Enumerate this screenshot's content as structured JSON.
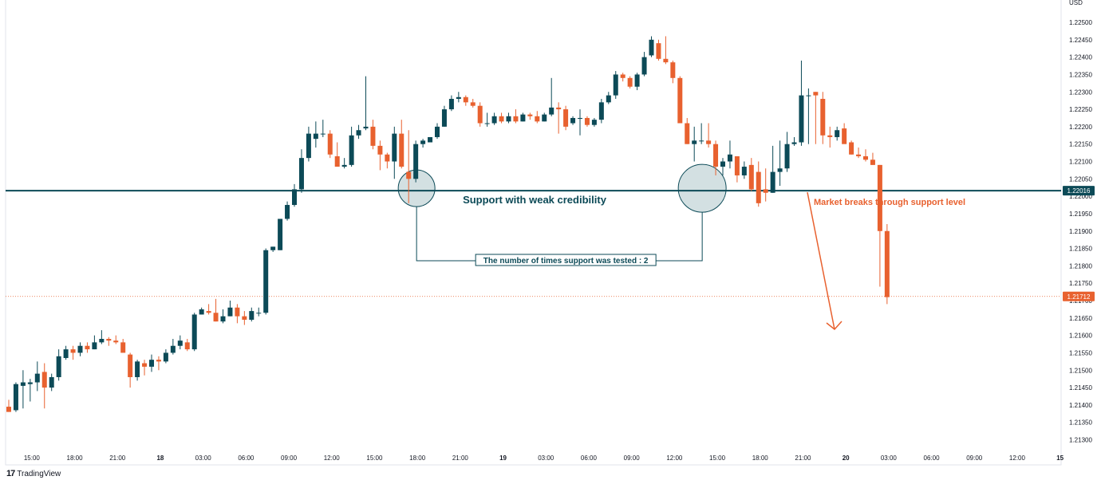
{
  "chart_data": {
    "type": "candlestick",
    "currency": "USD",
    "y_ticks": [
      1.225,
      1.2245,
      1.224,
      1.2235,
      1.223,
      1.2225,
      1.222,
      1.2215,
      1.221,
      1.2205,
      1.22,
      1.2195,
      1.219,
      1.2185,
      1.218,
      1.2175,
      1.217,
      1.2165,
      1.216,
      1.2155,
      1.215,
      1.2145,
      1.214,
      1.2135,
      1.213
    ],
    "y_tick_labels": [
      "1.22500",
      "1.22450",
      "1.22400",
      "1.22350",
      "1.22300",
      "1.22250",
      "1.22200",
      "1.22150",
      "1.22100",
      "1.22050",
      "1.22000",
      "1.21950",
      "1.21900",
      "1.21850",
      "1.21800",
      "1.21750",
      "1.21700",
      "1.21650",
      "1.21600",
      "1.21550",
      "1.21500",
      "1.21450",
      "1.21400",
      "1.21350",
      "1.21300"
    ],
    "ylim": [
      1.21285,
      1.22535
    ],
    "x_ticks": [
      {
        "bar": 3,
        "label": "15:00"
      },
      {
        "bar": 9,
        "label": "18:00"
      },
      {
        "bar": 15,
        "label": "21:00"
      },
      {
        "bar": 21,
        "label": "18"
      },
      {
        "bar": 27,
        "label": "03:00"
      },
      {
        "bar": 33,
        "label": "06:00"
      },
      {
        "bar": 39,
        "label": "09:00"
      },
      {
        "bar": 45,
        "label": "12:00"
      },
      {
        "bar": 51,
        "label": "15:00"
      },
      {
        "bar": 57,
        "label": "18:00"
      },
      {
        "bar": 63,
        "label": "21:00"
      },
      {
        "bar": 69,
        "label": "19"
      },
      {
        "bar": 75,
        "label": "03:00"
      },
      {
        "bar": 81,
        "label": "06:00"
      },
      {
        "bar": 87,
        "label": "09:00"
      },
      {
        "bar": 93,
        "label": "12:00"
      },
      {
        "bar": 99,
        "label": "15:00"
      },
      {
        "bar": 105,
        "label": "18:00"
      },
      {
        "bar": 111,
        "label": "21:00"
      },
      {
        "bar": 117,
        "label": "20"
      },
      {
        "bar": 123,
        "label": "03:00"
      },
      {
        "bar": 129,
        "label": "06:00"
      },
      {
        "bar": 135,
        "label": "09:00"
      },
      {
        "bar": 141,
        "label": "12:00"
      },
      {
        "bar": 147,
        "label": "15"
      }
    ],
    "total_bars": 148,
    "candles": [
      [
        1.21395,
        1.21415,
        1.2138,
        1.2138
      ],
      [
        1.21385,
        1.21465,
        1.2138,
        1.2146
      ],
      [
        1.21455,
        1.215,
        1.2139,
        1.21465
      ],
      [
        1.2146,
        1.21475,
        1.2141,
        1.21465
      ],
      [
        1.21465,
        1.21525,
        1.2144,
        1.2149
      ],
      [
        1.21495,
        1.2152,
        1.2139,
        1.2145
      ],
      [
        1.2145,
        1.2149,
        1.2144,
        1.2148
      ],
      [
        1.2148,
        1.2156,
        1.2147,
        1.2154
      ],
      [
        1.21535,
        1.2157,
        1.2153,
        1.2156
      ],
      [
        1.2156,
        1.2157,
        1.2153,
        1.2155
      ],
      [
        1.2155,
        1.2158,
        1.2154,
        1.2157
      ],
      [
        1.2157,
        1.2158,
        1.2155,
        1.2156
      ],
      [
        1.2156,
        1.216,
        1.2156,
        1.2158
      ],
      [
        1.2158,
        1.21615,
        1.21575,
        1.2159
      ],
      [
        1.2159,
        1.21595,
        1.2157,
        1.21585
      ],
      [
        1.21585,
        1.216,
        1.21575,
        1.2158
      ],
      [
        1.2158,
        1.2159,
        1.21555,
        1.2155
      ],
      [
        1.21545,
        1.2155,
        1.2145,
        1.2148
      ],
      [
        1.2148,
        1.2153,
        1.2147,
        1.21525
      ],
      [
        1.2152,
        1.2153,
        1.21485,
        1.2151
      ],
      [
        1.2151,
        1.21545,
        1.21495,
        1.2153
      ],
      [
        1.2153,
        1.2154,
        1.215,
        1.21525
      ],
      [
        1.21525,
        1.2156,
        1.2152,
        1.2155
      ],
      [
        1.2155,
        1.2159,
        1.21545,
        1.2157
      ],
      [
        1.2157,
        1.216,
        1.2156,
        1.21585
      ],
      [
        1.2158,
        1.2159,
        1.21555,
        1.2156
      ],
      [
        1.2156,
        1.21665,
        1.21555,
        1.2166
      ],
      [
        1.2166,
        1.2168,
        1.2166,
        1.21675
      ],
      [
        1.2167,
        1.2169,
        1.2166,
        1.21665
      ],
      [
        1.21665,
        1.21705,
        1.2164,
        1.2164
      ],
      [
        1.2164,
        1.21675,
        1.21635,
        1.21655
      ],
      [
        1.21655,
        1.217,
        1.21655,
        1.2168
      ],
      [
        1.2168,
        1.2169,
        1.21635,
        1.21655
      ],
      [
        1.21655,
        1.2167,
        1.2163,
        1.21645
      ],
      [
        1.21645,
        1.2168,
        1.2164,
        1.2167
      ],
      [
        1.21665,
        1.2168,
        1.21655,
        1.21665
      ],
      [
        1.21665,
        1.2185,
        1.2166,
        1.21845
      ],
      [
        1.21845,
        1.21855,
        1.2184,
        1.21855
      ],
      [
        1.21845,
        1.21935,
        1.21845,
        1.21935
      ],
      [
        1.21935,
        1.21985,
        1.2193,
        1.21975
      ],
      [
        1.21975,
        1.22035,
        1.2197,
        1.2202
      ],
      [
        1.2202,
        1.22135,
        1.2201,
        1.2211
      ],
      [
        1.2211,
        1.222,
        1.221,
        1.2218
      ],
      [
        1.22165,
        1.22215,
        1.2214,
        1.2218
      ],
      [
        1.2218,
        1.2222,
        1.2217,
        1.2218
      ],
      [
        1.2218,
        1.2219,
        1.2211,
        1.2212
      ],
      [
        1.22115,
        1.22155,
        1.22085,
        1.22085
      ],
      [
        1.22085,
        1.2211,
        1.2208,
        1.2209
      ],
      [
        1.2209,
        1.222,
        1.22085,
        1.22175
      ],
      [
        1.22175,
        1.22205,
        1.22165,
        1.2219
      ],
      [
        1.22195,
        1.22345,
        1.2219,
        1.222
      ],
      [
        1.222,
        1.2222,
        1.22135,
        1.22145
      ],
      [
        1.22145,
        1.2216,
        1.22075,
        1.2212
      ],
      [
        1.2212,
        1.22125,
        1.2208,
        1.221
      ],
      [
        1.221,
        1.222,
        1.2205,
        1.2218
      ],
      [
        1.2218,
        1.2222,
        1.2208,
        1.22085
      ],
      [
        1.2207,
        1.2219,
        1.2198,
        1.2205
      ],
      [
        1.2205,
        1.2216,
        1.2204,
        1.2215
      ],
      [
        1.2215,
        1.22165,
        1.2214,
        1.2216
      ],
      [
        1.22155,
        1.2217,
        1.2216,
        1.2217
      ],
      [
        1.2217,
        1.2221,
        1.22165,
        1.222
      ],
      [
        1.222,
        1.2226,
        1.222,
        1.2225
      ],
      [
        1.2225,
        1.2229,
        1.22245,
        1.2228
      ],
      [
        1.2228,
        1.223,
        1.2227,
        1.22285
      ],
      [
        1.22285,
        1.2229,
        1.2226,
        1.2227
      ],
      [
        1.2227,
        1.2228,
        1.22255,
        1.2226
      ],
      [
        1.2226,
        1.2227,
        1.222,
        1.2221
      ],
      [
        1.2221,
        1.2224,
        1.222,
        1.2221
      ],
      [
        1.2221,
        1.2224,
        1.22205,
        1.2223
      ],
      [
        1.2223,
        1.2224,
        1.2221,
        1.22215
      ],
      [
        1.22215,
        1.2224,
        1.2221,
        1.2223
      ],
      [
        1.2223,
        1.2225,
        1.2221,
        1.22215
      ],
      [
        1.22215,
        1.2224,
        1.22215,
        1.22235
      ],
      [
        1.22235,
        1.2224,
        1.2222,
        1.2223
      ],
      [
        1.2223,
        1.22245,
        1.2221,
        1.22215
      ],
      [
        1.22215,
        1.2224,
        1.22215,
        1.22235
      ],
      [
        1.22235,
        1.2234,
        1.2223,
        1.22255
      ],
      [
        1.22255,
        1.2227,
        1.2218,
        1.2225
      ],
      [
        1.2225,
        1.2226,
        1.2219,
        1.222
      ],
      [
        1.2221,
        1.2223,
        1.22205,
        1.22225
      ],
      [
        1.22225,
        1.2225,
        1.22175,
        1.22225
      ],
      [
        1.22225,
        1.2223,
        1.222,
        1.22205
      ],
      [
        1.22205,
        1.22225,
        1.222,
        1.2222
      ],
      [
        1.2222,
        1.2228,
        1.2221,
        1.2227
      ],
      [
        1.2227,
        1.223,
        1.22265,
        1.2229
      ],
      [
        1.2229,
        1.2236,
        1.2228,
        1.2235
      ],
      [
        1.2235,
        1.22355,
        1.2233,
        1.2234
      ],
      [
        1.2234,
        1.22345,
        1.2231,
        1.22315
      ],
      [
        1.22315,
        1.22355,
        1.22305,
        1.2235
      ],
      [
        1.2235,
        1.22415,
        1.22345,
        1.224
      ],
      [
        1.22405,
        1.2246,
        1.224,
        1.2245
      ],
      [
        1.2244,
        1.2245,
        1.2239,
        1.22395
      ],
      [
        1.22395,
        1.2246,
        1.2238,
        1.22385
      ],
      [
        1.22385,
        1.2239,
        1.22325,
        1.2234
      ],
      [
        1.2234,
        1.22345,
        1.2221,
        1.2221
      ],
      [
        1.2221,
        1.22225,
        1.2215,
        1.2215
      ],
      [
        1.2215,
        1.222,
        1.221,
        1.2216
      ],
      [
        1.2216,
        1.2221,
        1.2215,
        1.2216
      ],
      [
        1.2216,
        1.2221,
        1.2214,
        1.2215
      ],
      [
        1.2215,
        1.2216,
        1.2206,
        1.22085
      ],
      [
        1.22085,
        1.2211,
        1.2206,
        1.221
      ],
      [
        1.221,
        1.2216,
        1.2208,
        1.2212
      ],
      [
        1.22115,
        1.22115,
        1.2204,
        1.2206
      ],
      [
        1.2206,
        1.221,
        1.2205,
        1.22085
      ],
      [
        1.2209,
        1.2211,
        1.22015,
        1.2202
      ],
      [
        1.2207,
        1.221,
        1.2197,
        1.2198
      ],
      [
        1.2202,
        1.2208,
        1.21985,
        1.2201
      ],
      [
        1.2201,
        1.22145,
        1.2201,
        1.2207
      ],
      [
        1.2207,
        1.2216,
        1.2203,
        1.2208
      ],
      [
        1.2208,
        1.22185,
        1.2207,
        1.2215
      ],
      [
        1.2215,
        1.2217,
        1.22145,
        1.22155
      ],
      [
        1.22155,
        1.2239,
        1.22145,
        1.2229
      ],
      [
        1.2229,
        1.2231,
        1.2215,
        1.2229
      ],
      [
        1.223,
        1.223,
        1.2215,
        1.2229
      ],
      [
        1.2228,
        1.223,
        1.2215,
        1.22175
      ],
      [
        1.22175,
        1.222,
        1.2214,
        1.2217
      ],
      [
        1.2217,
        1.222,
        1.2216,
        1.2219
      ],
      [
        1.22195,
        1.2221,
        1.22155,
        1.2215
      ],
      [
        1.22155,
        1.2216,
        1.2212,
        1.2212
      ],
      [
        1.2212,
        1.2214,
        1.2211,
        1.22115
      ],
      [
        1.22115,
        1.22135,
        1.221,
        1.22105
      ],
      [
        1.22105,
        1.22125,
        1.2209,
        1.2209
      ],
      [
        1.2209,
        1.2209,
        1.2174,
        1.219
      ],
      [
        1.219,
        1.2192,
        1.2169,
        1.2171
      ]
    ],
    "support": {
      "value": 1.22016,
      "label": "1.22016",
      "text": "Support with weak credibility"
    },
    "current_price": {
      "value": 1.21712,
      "label": "1.21712"
    },
    "annotations": {
      "tests_text": "The number of times support was tested : 2",
      "breakout_text": "Market breaks through support level",
      "test_bars": [
        57,
        97
      ]
    },
    "colors": {
      "up": "#0c4a57",
      "down": "#e8612f",
      "support_line": "#0c4a57",
      "current_line": "#e8612f",
      "breakout_text": "#e8612f",
      "circle_fill": "#c4d6d8"
    }
  },
  "branding": {
    "name": "TradingView"
  }
}
